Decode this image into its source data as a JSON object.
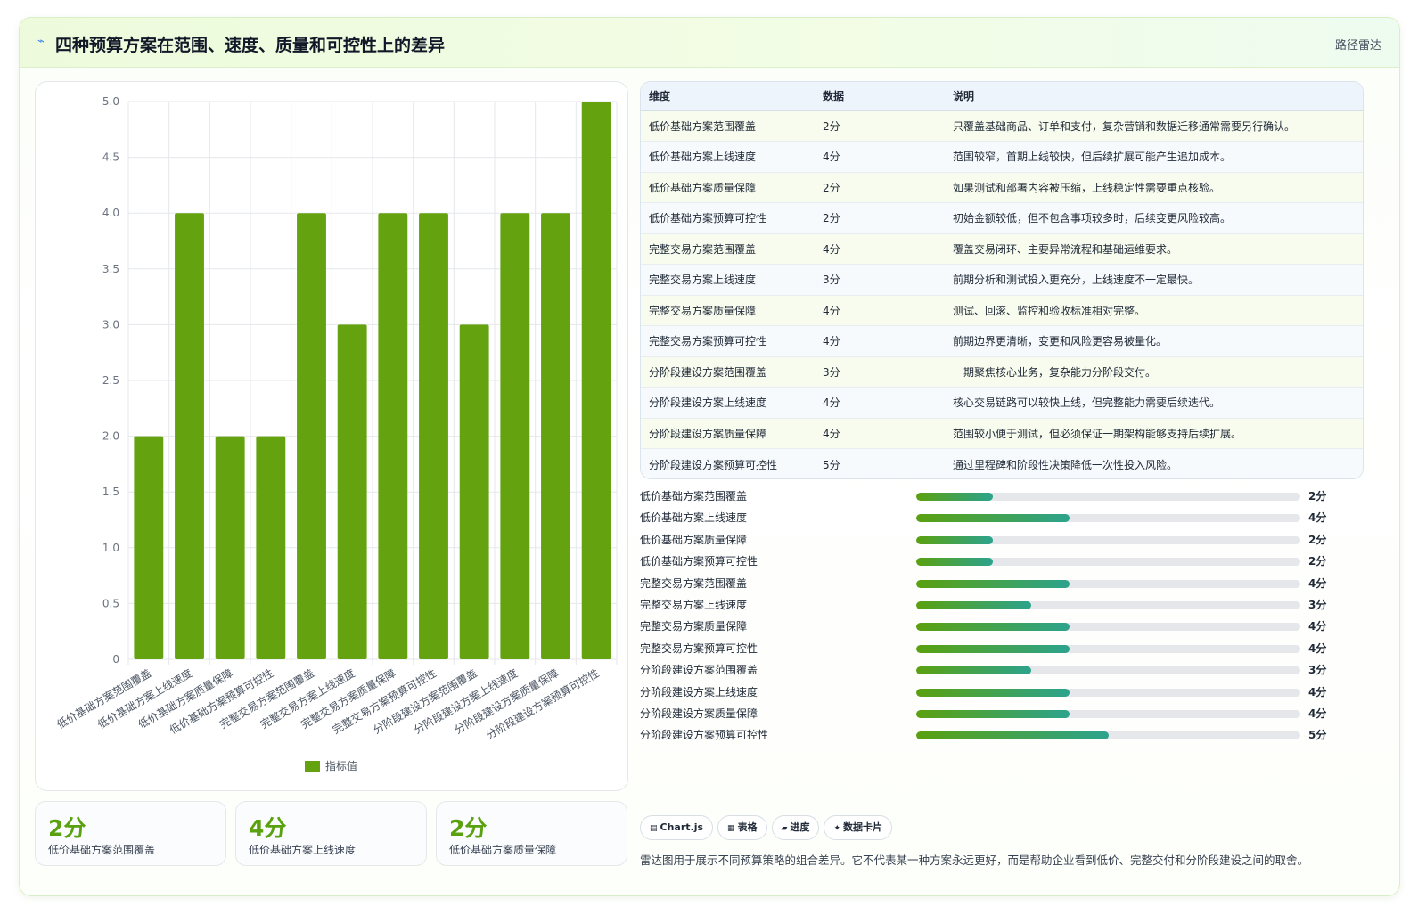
{
  "header": {
    "title": "四种预算方案在范围、速度、质量和可控性上的差异",
    "link": "路径雷达"
  },
  "colors": {
    "accent": "#5aa10f",
    "bar_fill": "#64a30f",
    "progress_end": "#2ca38d"
  },
  "chart_data": {
    "type": "bar",
    "categories": [
      "低价基础方案范围覆盖",
      "低价基础方案上线速度",
      "低价基础方案质量保障",
      "低价基础方案预算可控性",
      "完整交易方案范围覆盖",
      "完整交易方案上线速度",
      "完整交易方案质量保障",
      "完整交易方案预算可控性",
      "分阶段建设方案范围覆盖",
      "分阶段建设方案上线速度",
      "分阶段建设方案质量保障",
      "分阶段建设方案预算可控性"
    ],
    "series": [
      {
        "name": "指标值",
        "values": [
          2,
          4,
          2,
          2,
          4,
          3,
          4,
          4,
          3,
          4,
          4,
          5
        ]
      }
    ],
    "ylim": [
      0,
      5
    ],
    "yticks": [
      "0",
      "0.5",
      "1.0",
      "1.5",
      "2.0",
      "2.5",
      "3.0",
      "3.5",
      "4.0",
      "4.5",
      "5.0"
    ],
    "grid": true,
    "legend": "bottom"
  },
  "stats": [
    {
      "value": "2分",
      "label": "低价基础方案范围覆盖"
    },
    {
      "value": "4分",
      "label": "低价基础方案上线速度"
    },
    {
      "value": "2分",
      "label": "低价基础方案质量保障"
    }
  ],
  "table": {
    "headers": [
      "维度",
      "数据",
      "说明"
    ],
    "rows": [
      [
        "低价基础方案范围覆盖",
        "2分",
        "只覆盖基础商品、订单和支付，复杂营销和数据迁移通常需要另行确认。"
      ],
      [
        "低价基础方案上线速度",
        "4分",
        "范围较窄，首期上线较快，但后续扩展可能产生追加成本。"
      ],
      [
        "低价基础方案质量保障",
        "2分",
        "如果测试和部署内容被压缩，上线稳定性需要重点核验。"
      ],
      [
        "低价基础方案预算可控性",
        "2分",
        "初始金额较低，但不包含事项较多时，后续变更风险较高。"
      ],
      [
        "完整交易方案范围覆盖",
        "4分",
        "覆盖交易闭环、主要异常流程和基础运维要求。"
      ],
      [
        "完整交易方案上线速度",
        "3分",
        "前期分析和测试投入更充分，上线速度不一定最快。"
      ],
      [
        "完整交易方案质量保障",
        "4分",
        "测试、回滚、监控和验收标准相对完整。"
      ],
      [
        "完整交易方案预算可控性",
        "4分",
        "前期边界更清晰，变更和风险更容易被量化。"
      ],
      [
        "分阶段建设方案范围覆盖",
        "3分",
        "一期聚焦核心业务，复杂能力分阶段交付。"
      ],
      [
        "分阶段建设方案上线速度",
        "4分",
        "核心交易链路可以较快上线，但完整能力需要后续迭代。"
      ],
      [
        "分阶段建设方案质量保障",
        "4分",
        "范围较小便于测试，但必须保证一期架构能够支持后续扩展。"
      ],
      [
        "分阶段建设方案预算可控性",
        "5分",
        "通过里程碑和阶段性决策降低一次性投入风险。"
      ]
    ]
  },
  "progress": {
    "max": 10,
    "items": [
      {
        "label": "低价基础方案范围覆盖",
        "value": 2,
        "text": "2分"
      },
      {
        "label": "低价基础方案上线速度",
        "value": 4,
        "text": "4分"
      },
      {
        "label": "低价基础方案质量保障",
        "value": 2,
        "text": "2分"
      },
      {
        "label": "低价基础方案预算可控性",
        "value": 2,
        "text": "2分"
      },
      {
        "label": "完整交易方案范围覆盖",
        "value": 4,
        "text": "4分"
      },
      {
        "label": "完整交易方案上线速度",
        "value": 3,
        "text": "3分"
      },
      {
        "label": "完整交易方案质量保障",
        "value": 4,
        "text": "4分"
      },
      {
        "label": "完整交易方案预算可控性",
        "value": 4,
        "text": "4分"
      },
      {
        "label": "分阶段建设方案范围覆盖",
        "value": 3,
        "text": "3分"
      },
      {
        "label": "分阶段建设方案上线速度",
        "value": 4,
        "text": "4分"
      },
      {
        "label": "分阶段建设方案质量保障",
        "value": 4,
        "text": "4分"
      },
      {
        "label": "分阶段建设方案预算可控性",
        "value": 5,
        "text": "5分"
      }
    ]
  },
  "tags": [
    {
      "icon": "▤",
      "label": "Chart.js"
    },
    {
      "icon": "▦",
      "label": "表格"
    },
    {
      "icon": "▰",
      "label": "进度"
    },
    {
      "icon": "✦",
      "label": "数据卡片"
    }
  ],
  "note": "雷达图用于展示不同预算策略的组合差异。它不代表某一种方案永远更好，而是帮助企业看到低价、完整交付和分阶段建设之间的取舍。"
}
